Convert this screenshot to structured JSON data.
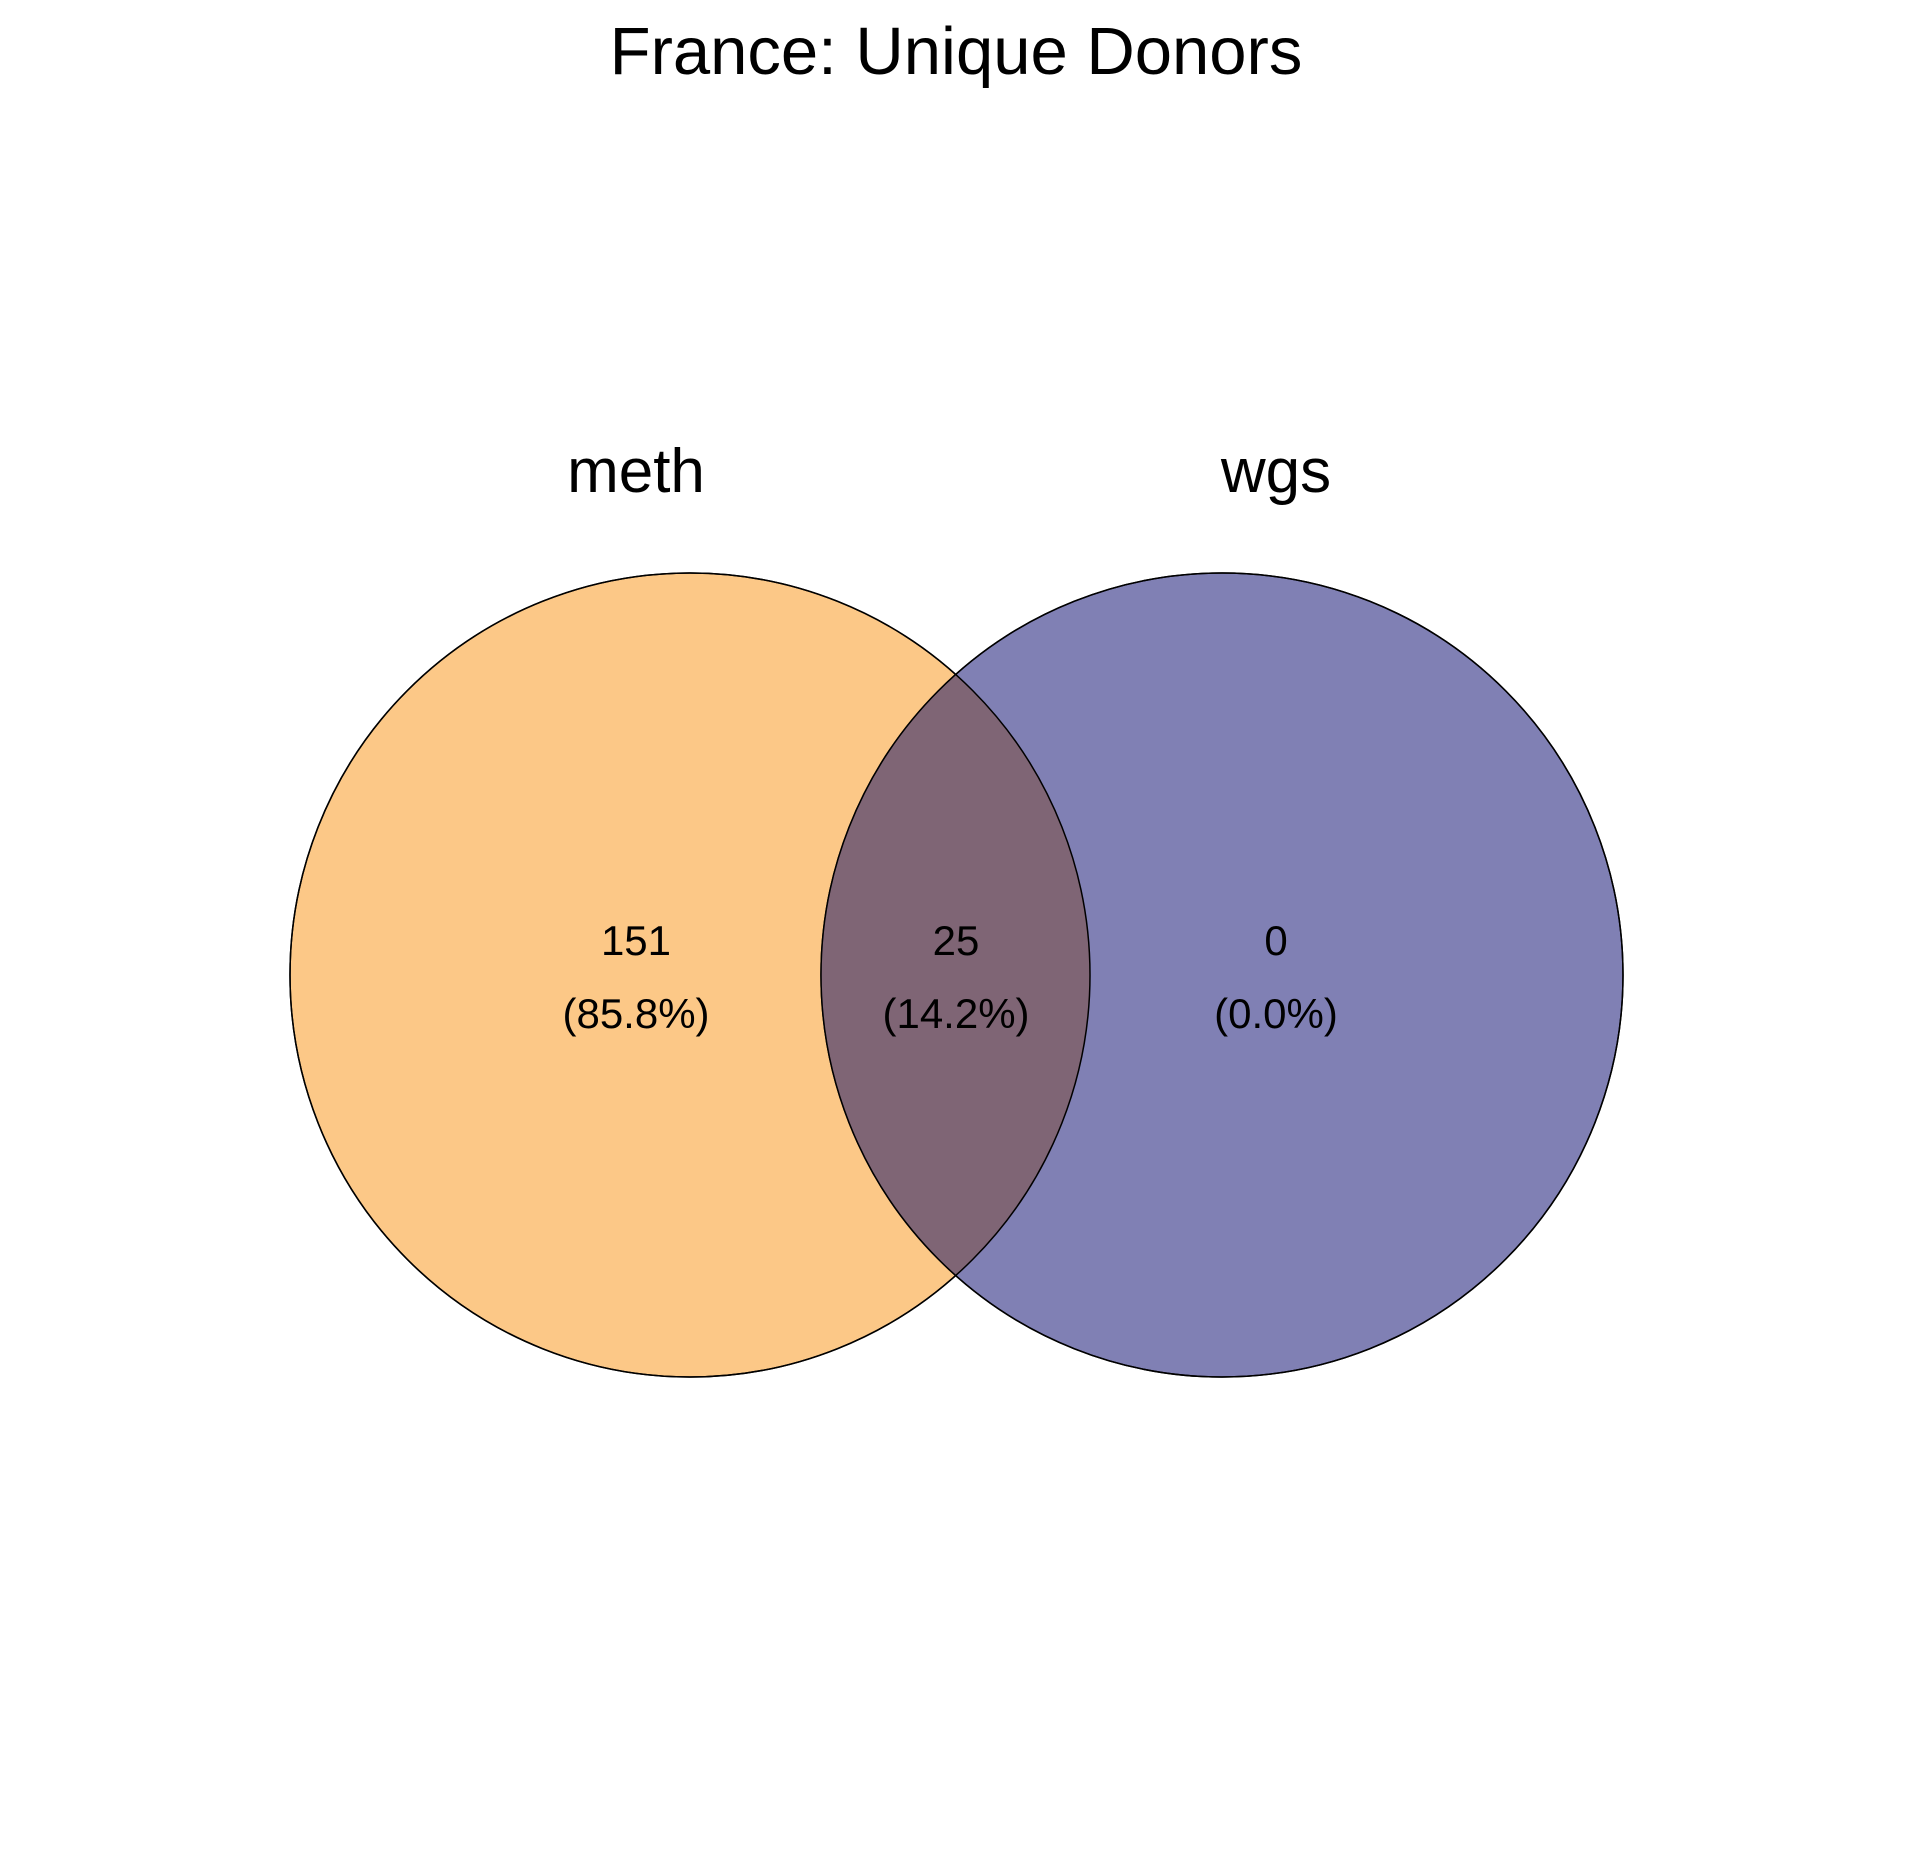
{
  "title": "France: Unique Donors",
  "sets": [
    {
      "name": "meth",
      "color": "#fcc887"
    },
    {
      "name": "wgs",
      "color": "#8080b4"
    }
  ],
  "overlap_color": "#7f6575",
  "regions": {
    "meth_only": {
      "count": "151",
      "percent": "(85.8%)"
    },
    "both": {
      "count": "25",
      "percent": "(14.2%)"
    },
    "wgs_only": {
      "count": "0",
      "percent": "(0.0%)"
    }
  }
}
